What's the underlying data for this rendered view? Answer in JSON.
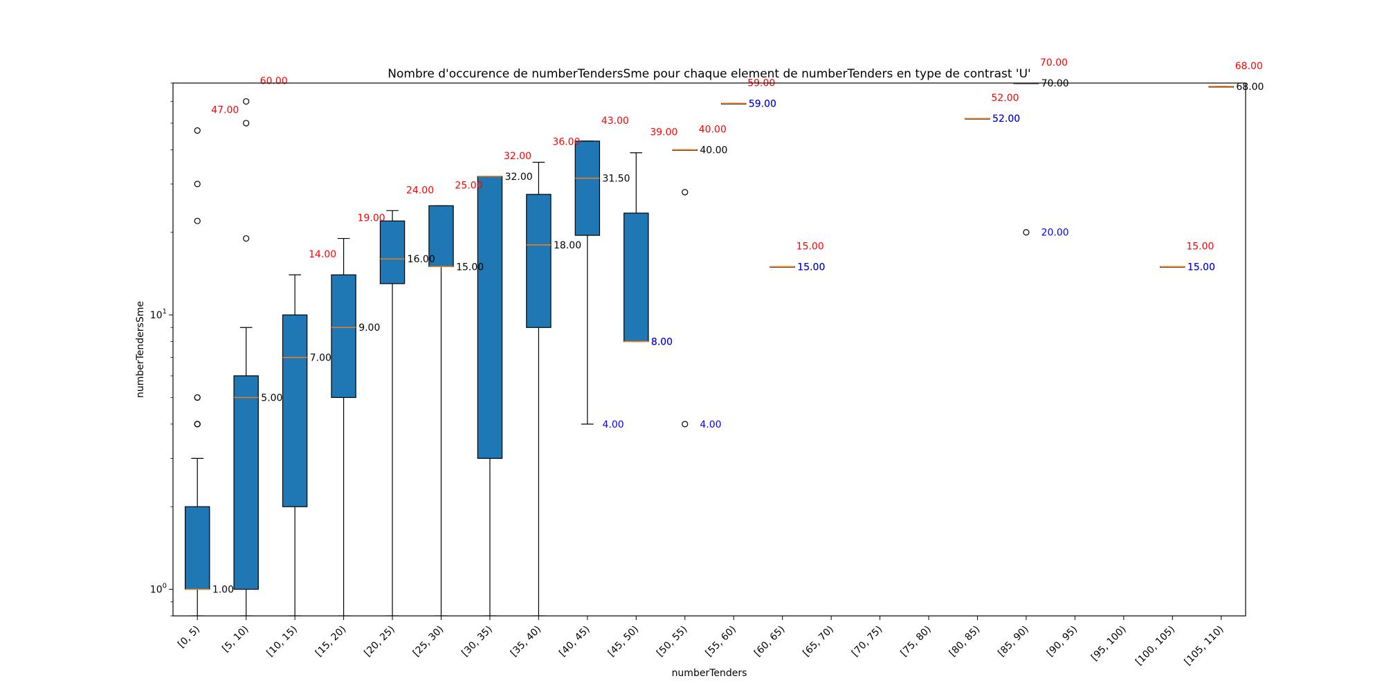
{
  "chart_data": {
    "type": "box",
    "title": "Nombre d'occurence de numberTendersSme pour chaque element de numberTenders en type de contrast 'U'",
    "xlabel": "numberTenders",
    "ylabel": "numberTendersSme",
    "yscale": "log",
    "ylim": [
      0.8,
      70
    ],
    "y_ticks": [
      {
        "value": 1,
        "base": "10",
        "exp": "0"
      },
      {
        "value": 10,
        "base": "10",
        "exp": "1"
      }
    ],
    "categories": [
      "[0, 5)",
      "[5, 10)",
      "[10, 15)",
      "[15, 20)",
      "[20, 25)",
      "[25, 30)",
      "[30, 35)",
      "[35, 40)",
      "[40, 45)",
      "[45, 50)",
      "[50, 55)",
      "[55, 60)",
      "[60, 65)",
      "[65, 70)",
      "[70, 75)",
      "[75, 80)",
      "[80, 85)",
      "[85, 90)",
      "[90, 95)",
      "[95, 100)",
      "[100, 105)",
      "[105, 110)"
    ],
    "boxes": [
      {
        "index": 0,
        "q1": 1,
        "median": 1,
        "q3": 2,
        "whislo": 0.8,
        "whishi": 3,
        "fliers": [
          4,
          4,
          4,
          5,
          5,
          22,
          30,
          47
        ],
        "median_label": "1.00",
        "max_label": "47.00",
        "min_label": ""
      },
      {
        "index": 1,
        "q1": 1,
        "median": 5,
        "q3": 6,
        "whislo": 0.8,
        "whishi": 9,
        "fliers": [
          19,
          50,
          60
        ],
        "median_label": "5.00",
        "max_label": "60.00",
        "min_label": ""
      },
      {
        "index": 2,
        "q1": 2,
        "median": 7,
        "q3": 10,
        "whislo": 0.8,
        "whishi": 14,
        "fliers": [],
        "median_label": "7.00",
        "max_label": "14.00",
        "min_label": ""
      },
      {
        "index": 3,
        "q1": 5,
        "median": 9,
        "q3": 14,
        "whislo": 0.8,
        "whishi": 19,
        "fliers": [],
        "median_label": "9.00",
        "max_label": "19.00",
        "min_label": ""
      },
      {
        "index": 4,
        "q1": 13,
        "median": 16,
        "q3": 22,
        "whislo": 0.8,
        "whishi": 24,
        "fliers": [],
        "median_label": "16.00",
        "max_label": "24.00",
        "min_label": ""
      },
      {
        "index": 5,
        "q1": 15,
        "median": 15,
        "q3": 25,
        "whislo": 0.8,
        "whishi": 25,
        "fliers": [],
        "median_label": "15.00",
        "max_label": "25.00",
        "min_label": ""
      },
      {
        "index": 6,
        "q1": 3,
        "median": 32,
        "q3": 32,
        "whislo": 0.8,
        "whishi": 32,
        "fliers": [],
        "median_label": "32.00",
        "max_label": "32.00",
        "min_label": ""
      },
      {
        "index": 7,
        "q1": 9,
        "median": 18,
        "q3": 27.5,
        "whislo": 0.8,
        "whishi": 36,
        "fliers": [],
        "median_label": "18.00",
        "max_label": "36.00",
        "min_label": ""
      },
      {
        "index": 8,
        "q1": 19.5,
        "median": 31.5,
        "q3": 43,
        "whislo": 4,
        "whishi": 43,
        "fliers": [],
        "median_label": "31.50",
        "max_label": "43.00",
        "min_label": "4.00"
      },
      {
        "index": 9,
        "q1": 8,
        "median": 8,
        "q3": 23.5,
        "whislo": 8,
        "whishi": 39,
        "fliers": [],
        "median_label": "8.00",
        "max_label": "39.00",
        "min_label": "8.00"
      },
      {
        "index": 10,
        "q1": 40,
        "median": 40,
        "q3": 40,
        "whislo": 40,
        "whishi": 40,
        "fliers": [
          4,
          28
        ],
        "median_label": "40.00",
        "max_label": "40.00",
        "min_label": "4.00"
      },
      {
        "index": 11,
        "q1": 59,
        "median": 59,
        "q3": 59,
        "whislo": 59,
        "whishi": 59,
        "fliers": [],
        "median_label": "59.00",
        "max_label": "59.00",
        "min_label": "59.00"
      },
      {
        "index": 12,
        "q1": 15,
        "median": 15,
        "q3": 15,
        "whislo": 15,
        "whishi": 15,
        "fliers": [],
        "median_label": "15.00",
        "max_label": "15.00",
        "min_label": "15.00"
      },
      {
        "index": 16,
        "q1": 52,
        "median": 52,
        "q3": 52,
        "whislo": 52,
        "whishi": 52,
        "fliers": [],
        "median_label": "52.00",
        "max_label": "52.00",
        "min_label": "52.00"
      },
      {
        "index": 17,
        "q1": 70,
        "median": 70,
        "q3": 70,
        "whislo": 70,
        "whishi": 70,
        "fliers": [
          20
        ],
        "median_label": "70.00",
        "max_label": "70.00",
        "min_label": "20.00"
      },
      {
        "index": 20,
        "q1": 15,
        "median": 15,
        "q3": 15,
        "whislo": 15,
        "whishi": 15,
        "fliers": [],
        "median_label": "15.00",
        "max_label": "15.00",
        "min_label": "15.00"
      },
      {
        "index": 21,
        "q1": 68,
        "median": 68,
        "q3": 68,
        "whislo": 68,
        "whishi": 68,
        "fliers": [],
        "median_label": "68.00",
        "max_label": "68.00",
        "min_label": ""
      }
    ],
    "colors": {
      "box_fill": "#1f77b4",
      "median_line": "#ff7f0e",
      "max_label": "#ff0000",
      "min_label": "#0000ff",
      "median_label": "#000000"
    },
    "grid": false,
    "legend": "none"
  }
}
